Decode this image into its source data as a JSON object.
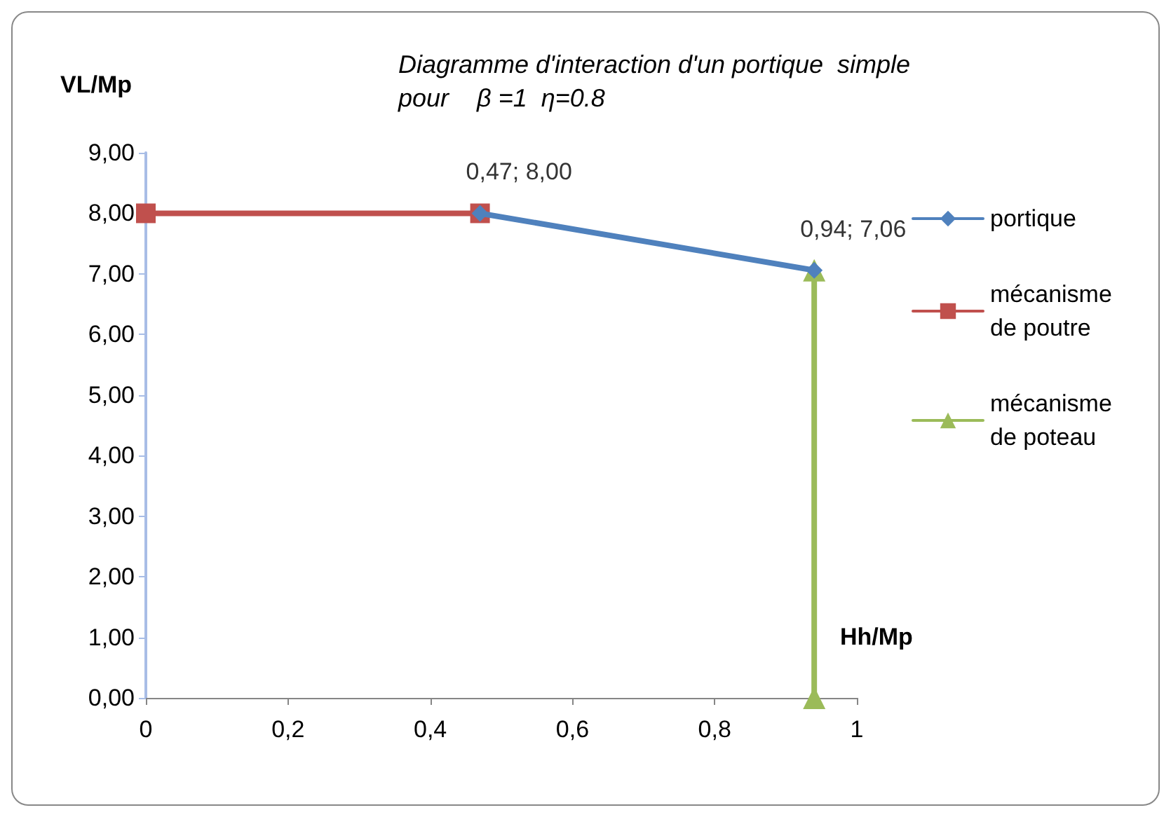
{
  "chart_data": {
    "type": "line",
    "title": "Diagramme d'interaction d'un portique  simple\npour    β =1  η=0.8",
    "xlabel": "Hh/Mp",
    "ylabel": "VL/Mp",
    "series": [
      {
        "name": "portique",
        "color": "#4f81bd",
        "marker": "diamond",
        "x": [
          0.47,
          0.94
        ],
        "values": [
          8.0,
          7.06
        ]
      },
      {
        "name": "mécanisme de poutre",
        "color": "#c0504d",
        "marker": "square",
        "x": [
          0,
          0.47
        ],
        "values": [
          8.0,
          8.0
        ]
      },
      {
        "name": "mécanisme de poteau",
        "color": "#9bbb59",
        "marker": "triangle",
        "x": [
          0.94,
          0.94
        ],
        "values": [
          0,
          7.06
        ]
      }
    ],
    "annotations": [
      {
        "text": "0,47; 8,00",
        "x": 0.47,
        "y": 8.0
      },
      {
        "text": "0,94; 7,06",
        "x": 0.94,
        "y": 7.06
      }
    ],
    "xlim": [
      0,
      1
    ],
    "xticks": [
      0,
      {
        "value": 0.2,
        "label": "0,2"
      },
      {
        "value": 0.4,
        "label": "0,4"
      },
      {
        "value": 0.6,
        "label": "0,6"
      },
      {
        "value": 0.8,
        "label": "0,8"
      },
      1
    ],
    "ylim": [
      0,
      9
    ],
    "yticks": [
      {
        "value": 0,
        "label": "0,00"
      },
      {
        "value": 1,
        "label": "1,00"
      },
      {
        "value": 2,
        "label": "2,00"
      },
      {
        "value": 3,
        "label": "3,00"
      },
      {
        "value": 4,
        "label": "4,00"
      },
      {
        "value": 5,
        "label": "5,00"
      },
      {
        "value": 6,
        "label": "6,00"
      },
      {
        "value": 7,
        "label": "7,00"
      },
      {
        "value": 8,
        "label": "8,00"
      },
      {
        "value": 9,
        "label": "9,00"
      }
    ],
    "grid": false,
    "legend": "right",
    "line_style": "solid"
  }
}
